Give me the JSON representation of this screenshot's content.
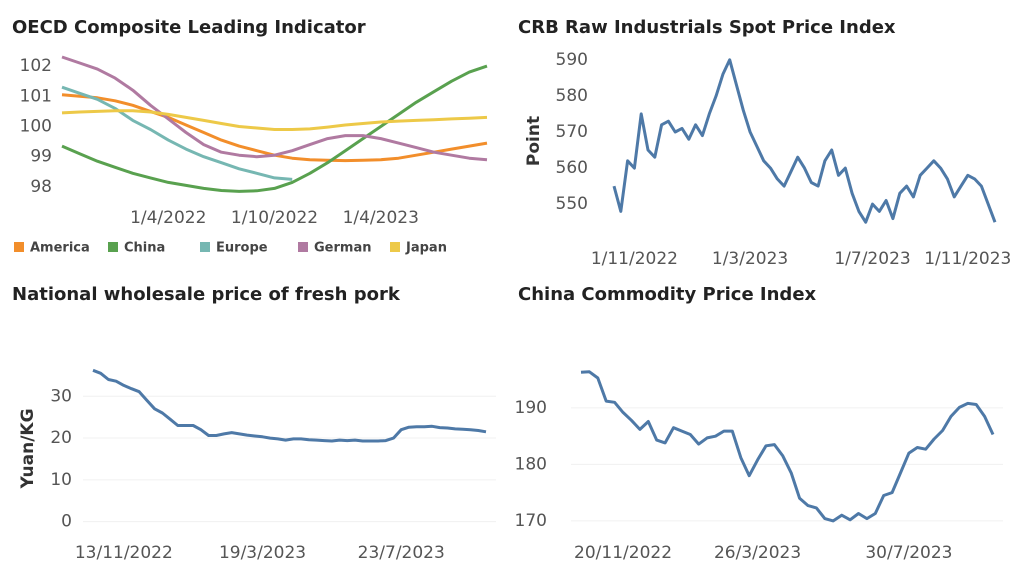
{
  "chart_data": [
    {
      "type": "line",
      "title": "OECD Composite Leading Indicator",
      "categories": [
        null,
        null,
        null,
        null,
        null,
        null,
        "1/4/2022",
        null,
        null,
        null,
        null,
        null,
        "1/10/2022",
        null,
        null,
        null,
        null,
        null,
        "1/4/2023",
        null,
        null,
        null,
        null,
        null,
        null
      ],
      "series": [
        {
          "name": "America",
          "color": "#f28e2b",
          "values": [
            101.05,
            101.0,
            100.95,
            100.85,
            100.7,
            100.5,
            100.3,
            100.05,
            99.8,
            99.55,
            99.35,
            99.2,
            99.05,
            98.95,
            98.9,
            98.88,
            98.87,
            98.88,
            98.9,
            98.95,
            99.05,
            99.15,
            99.25,
            99.35,
            99.45
          ]
        },
        {
          "name": "China",
          "color": "#59a14f",
          "values": [
            99.35,
            99.1,
            98.85,
            98.65,
            98.45,
            98.3,
            98.15,
            98.05,
            97.95,
            97.88,
            97.85,
            97.87,
            97.95,
            98.15,
            98.45,
            98.8,
            99.2,
            99.6,
            100.0,
            100.4,
            100.8,
            101.15,
            101.5,
            101.8,
            102.0
          ]
        },
        {
          "name": "Europe",
          "color": "#76b7b2",
          "values": [
            101.3,
            101.1,
            100.9,
            100.6,
            100.2,
            99.9,
            99.55,
            99.25,
            99.0,
            98.8,
            98.6,
            98.45,
            98.3,
            98.25,
            null,
            null,
            null,
            null,
            null,
            null,
            null,
            null,
            null,
            null,
            null
          ]
        },
        {
          "name": "German",
          "color": "#b07aa1",
          "values": [
            102.3,
            102.1,
            101.9,
            101.6,
            101.2,
            100.7,
            100.25,
            99.8,
            99.4,
            99.15,
            99.05,
            99.0,
            99.05,
            99.2,
            99.4,
            99.6,
            99.7,
            99.7,
            99.6,
            99.45,
            99.3,
            99.15,
            99.05,
            98.95,
            98.9
          ]
        },
        {
          "name": "Japan",
          "color": "#edc948",
          "values": [
            100.45,
            100.48,
            100.5,
            100.52,
            100.52,
            100.48,
            100.4,
            100.3,
            100.2,
            100.1,
            100.0,
            99.95,
            99.9,
            99.9,
            99.92,
            99.98,
            100.05,
            100.1,
            100.15,
            100.18,
            100.2,
            100.22,
            100.25,
            100.27,
            100.3
          ]
        }
      ],
      "ylim": [
        97.6,
        102.3
      ],
      "yticks": [
        98,
        99,
        100,
        101,
        102
      ],
      "grid": false,
      "legend": "bottom"
    },
    {
      "type": "line",
      "title": "CRB Raw Industrials Spot Price Index",
      "y_label": "Point",
      "categories": [
        null,
        null,
        null,
        "1/11/2022",
        null,
        null,
        null,
        null,
        null,
        null,
        null,
        null,
        null,
        null,
        null,
        null,
        null,
        null,
        null,
        null,
        "1/3/2023",
        null,
        null,
        null,
        null,
        null,
        null,
        null,
        null,
        null,
        null,
        null,
        null,
        null,
        null,
        null,
        null,
        null,
        "1/7/2023",
        null,
        null,
        null,
        null,
        null,
        null,
        null,
        null,
        null,
        null,
        null,
        null,
        null,
        "1/11/2023",
        null,
        null,
        null,
        null
      ],
      "series": [
        {
          "name": "CRB Raw Industrials Spot Price Index",
          "color": "#4e79a7",
          "values": [
            555,
            548,
            562,
            560,
            575,
            565,
            563,
            572,
            573,
            570,
            571,
            568,
            572,
            569,
            575,
            580,
            586,
            590,
            583,
            576,
            570,
            566,
            562,
            560,
            557,
            555,
            559,
            563,
            560,
            556,
            555,
            562,
            565,
            558,
            560,
            553,
            548,
            545,
            550,
            548,
            551,
            546,
            553,
            555,
            552,
            558,
            560,
            562,
            560,
            557,
            552,
            555,
            558,
            557,
            555,
            550,
            545
          ]
        }
      ],
      "ylim": [
        542,
        593
      ],
      "yticks": [
        550,
        560,
        570,
        580,
        590
      ],
      "grid": false
    },
    {
      "type": "line",
      "title": "National wholesale price of fresh pork",
      "y_label": "Yuan/KG",
      "categories": [
        null,
        null,
        null,
        null,
        "13/11/2022",
        null,
        null,
        null,
        null,
        null,
        null,
        null,
        null,
        null,
        null,
        null,
        null,
        null,
        null,
        null,
        null,
        null,
        "19/3/2023",
        null,
        null,
        null,
        null,
        null,
        null,
        null,
        null,
        null,
        null,
        null,
        null,
        null,
        null,
        null,
        null,
        null,
        "23/7/2023",
        null,
        null,
        null,
        null,
        null,
        null,
        null,
        null,
        null,
        null,
        null
      ],
      "series": [
        {
          "name": "National wholesale price of fresh pork",
          "color": "#4e79a7",
          "values": [
            36.2,
            35.5,
            34,
            33.6,
            32.6,
            31.8,
            31.1,
            29,
            27,
            26,
            24.5,
            23,
            23,
            23,
            22,
            20.6,
            20.6,
            21,
            21.3,
            21,
            20.7,
            20.5,
            20.3,
            20,
            19.8,
            19.5,
            19.8,
            19.8,
            19.6,
            19.5,
            19.4,
            19.3,
            19.5,
            19.4,
            19.5,
            19.3,
            19.3,
            19.3,
            19.4,
            20,
            22,
            22.6,
            22.7,
            22.7,
            22.8,
            22.5,
            22.4,
            22.2,
            22.1,
            22.0,
            21.8,
            21.5
          ]
        }
      ],
      "ylim": [
        -2,
        37
      ],
      "yticks": [
        0,
        10,
        20,
        30
      ],
      "grid": true
    },
    {
      "type": "line",
      "title": "China Commodity Price Index",
      "categories": [
        null,
        null,
        null,
        null,
        null,
        "20/11/2022",
        null,
        null,
        null,
        null,
        null,
        null,
        null,
        null,
        null,
        null,
        null,
        null,
        null,
        null,
        null,
        "26/3/2023",
        null,
        null,
        null,
        null,
        null,
        null,
        null,
        null,
        null,
        null,
        null,
        null,
        null,
        null,
        null,
        null,
        null,
        "30/7/2023",
        null,
        null,
        null,
        null,
        null,
        null,
        null,
        null,
        null,
        null
      ],
      "series": [
        {
          "name": "China Commodity Price Index",
          "color": "#4e79a7",
          "values": [
            196.3,
            196.4,
            195.3,
            191.2,
            191,
            189.2,
            187.8,
            186.2,
            187.6,
            184.3,
            183.8,
            186.5,
            185.9,
            185.3,
            183.6,
            184.7,
            185,
            185.9,
            185.9,
            181.2,
            178,
            180.8,
            183.3,
            183.5,
            181.5,
            178.5,
            174,
            172.7,
            172.3,
            170.4,
            170,
            171,
            170.2,
            171.3,
            170.4,
            171.3,
            174.5,
            175,
            178.5,
            182,
            183,
            182.7,
            184.5,
            186,
            188.5,
            190.1,
            190.8,
            190.6,
            188.5,
            185.3
          ]
        }
      ],
      "ylim": [
        167.5,
        197.6
      ],
      "yticks": [
        170,
        180,
        190
      ],
      "grid": true
    }
  ]
}
